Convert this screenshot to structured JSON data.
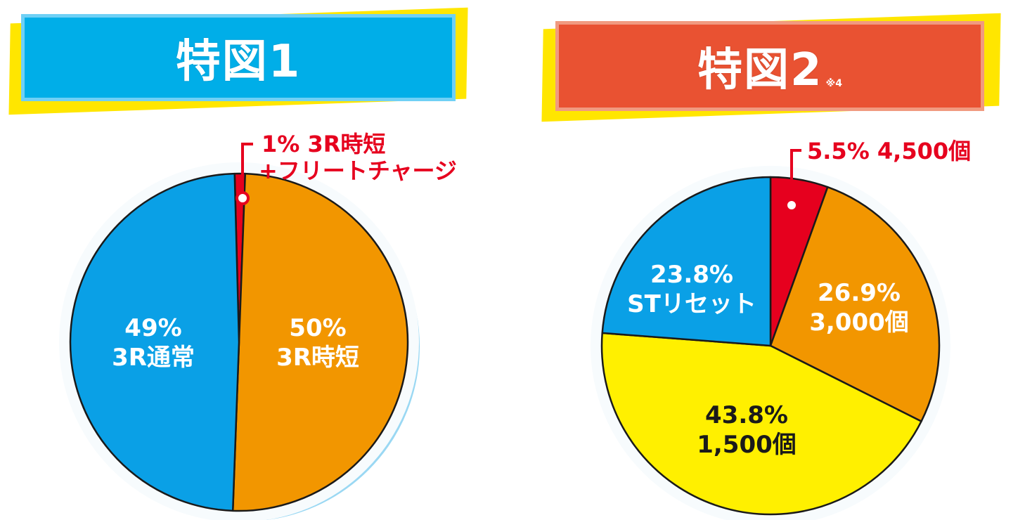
{
  "colors": {
    "blue": "#0aa0e6",
    "orange": "#f29600",
    "yellow": "#fff000",
    "red": "#e6001e",
    "banner_blue": "#00aee8",
    "banner_red": "#e95232",
    "banner_yellow": "#ffe600"
  },
  "chart_data": [
    {
      "type": "pie",
      "title": "特図1",
      "slices": [
        {
          "label": "1% 3R時短 +フリートチャージ",
          "value": 1,
          "percent": "1%",
          "name": "3R時短",
          "sub": "+フリートチャージ",
          "color": "#e6001e"
        },
        {
          "label": "50% 3R時短",
          "value": 50,
          "percent": "50%",
          "name": "3R時短",
          "color": "#f29600"
        },
        {
          "label": "49% 3R通常",
          "value": 49,
          "percent": "49%",
          "name": "3R通常",
          "color": "#0aa0e6"
        }
      ]
    },
    {
      "type": "pie",
      "title": "特図2",
      "note": "※4",
      "slices": [
        {
          "label": "5.5% 4,500個",
          "value": 5.5,
          "percent": "5.5%",
          "name": "4,500個",
          "color": "#e6001e"
        },
        {
          "label": "26.9% 3,000個",
          "value": 26.9,
          "percent": "26.9%",
          "name": "3,000個",
          "color": "#f29600"
        },
        {
          "label": "43.8% 1,500個",
          "value": 43.8,
          "percent": "43.8%",
          "name": "1,500個",
          "color": "#fff000"
        },
        {
          "label": "23.8% STリセット",
          "value": 23.8,
          "percent": "23.8%",
          "name": "STリセット",
          "color": "#0aa0e6"
        }
      ]
    }
  ]
}
